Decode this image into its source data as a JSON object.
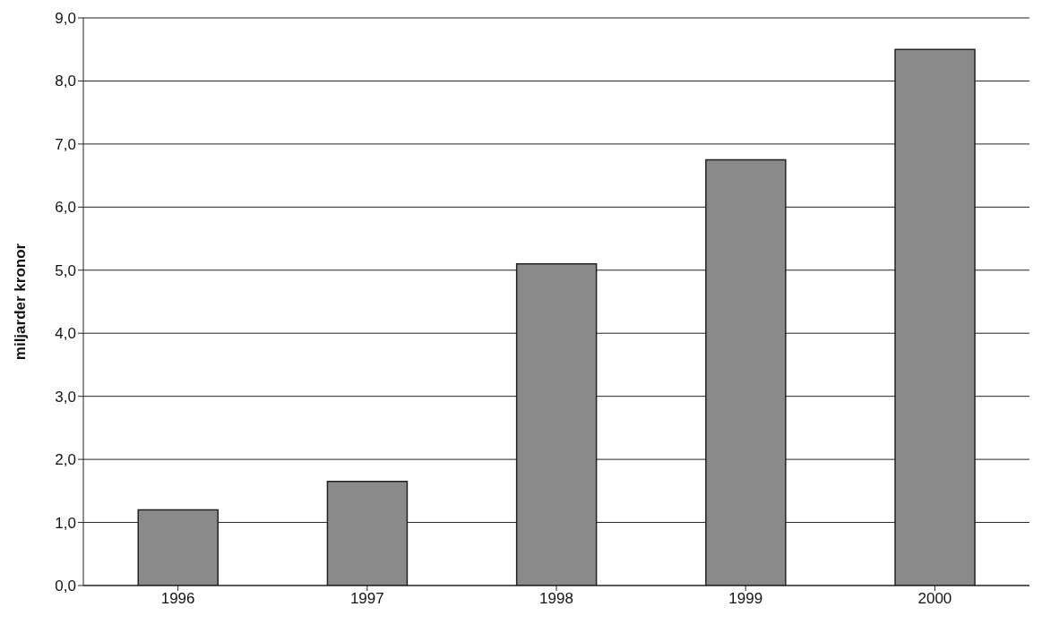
{
  "chart_data": {
    "type": "bar",
    "ylabel": "miljarder kronor",
    "categories": [
      "1996",
      "1997",
      "1998",
      "1999",
      "2000"
    ],
    "values": [
      1.2,
      1.65,
      5.1,
      6.75,
      8.5
    ],
    "color": "#8a8a8a",
    "ylim": [
      0,
      9
    ],
    "yticks": [
      {
        "value": 0,
        "label": "0,0"
      },
      {
        "value": 1,
        "label": "1,0"
      },
      {
        "value": 2,
        "label": "2,0"
      },
      {
        "value": 3,
        "label": "3,0"
      },
      {
        "value": 4,
        "label": "4,0"
      },
      {
        "value": 5,
        "label": "5,0"
      },
      {
        "value": 6,
        "label": "6,0"
      },
      {
        "value": 7,
        "label": "7,0"
      },
      {
        "value": 8,
        "label": "8,0"
      },
      {
        "value": 9,
        "label": "9,0"
      }
    ],
    "grid": "y",
    "legend": false
  }
}
